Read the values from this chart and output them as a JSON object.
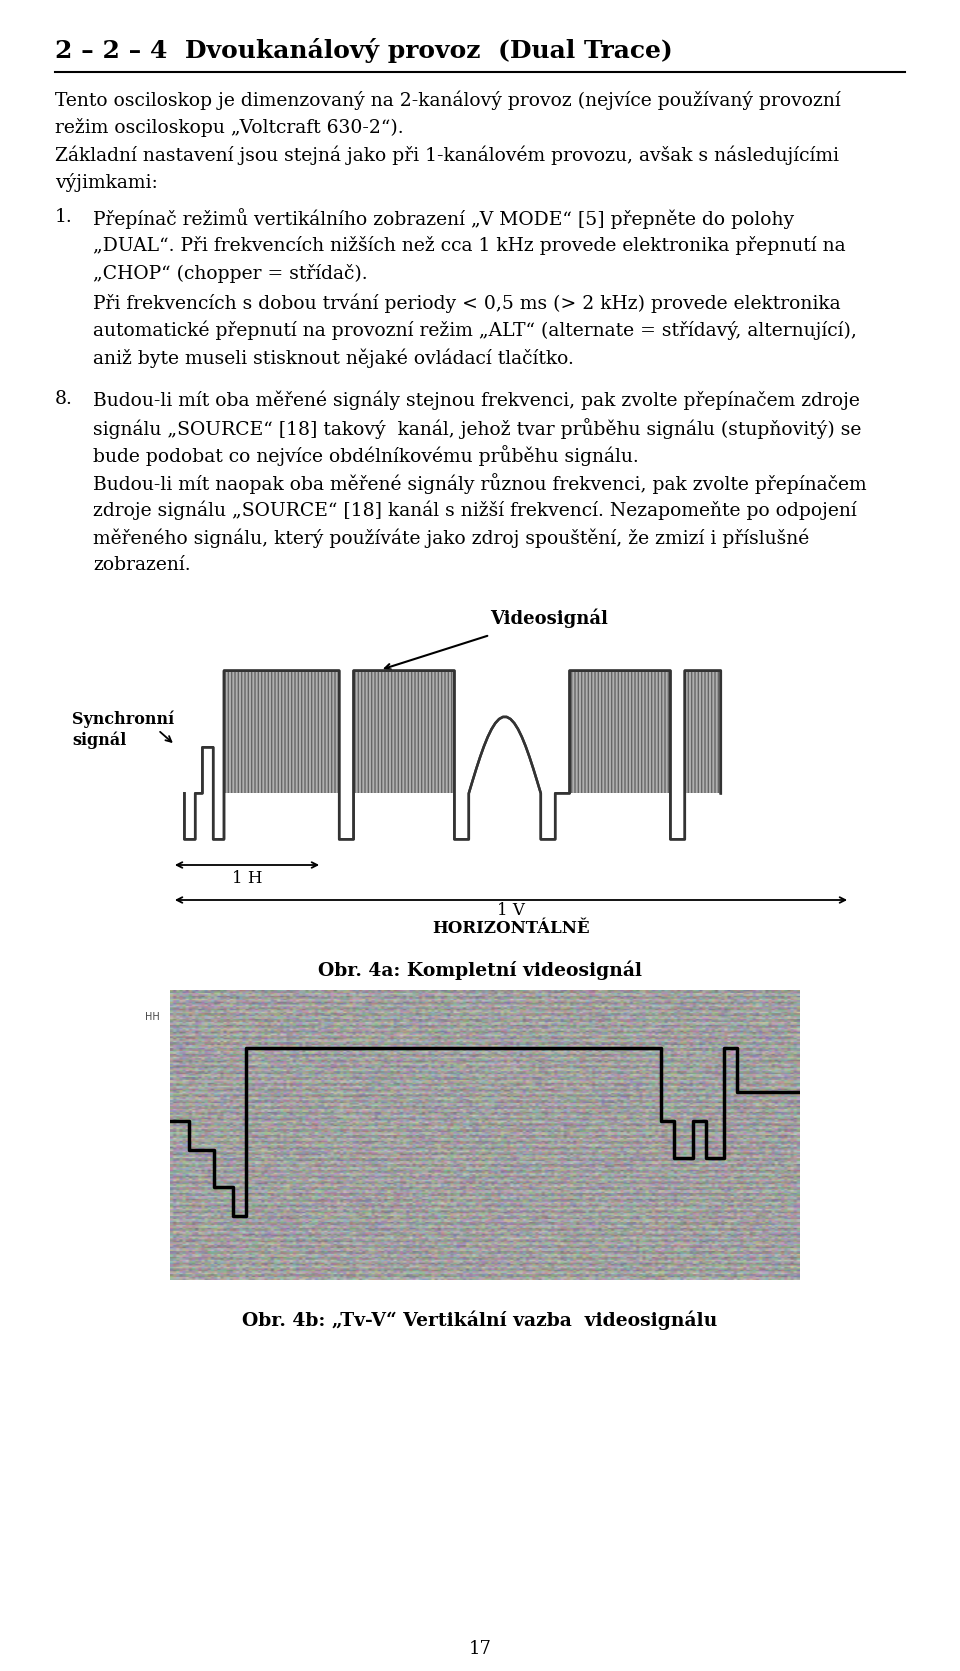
{
  "title": "2 – 2 – 4  Dvoukanálový provoz  (Dual Trace)",
  "bg_color": "#ffffff",
  "text_color": "#000000",
  "page_number": "17",
  "para1_lines": [
    "Tento osciloskop je dimenzovaný na 2-kanálový provoz (nejvíce používaný provozní",
    "režim osciloskopu „Voltcraft 630-2“).",
    "Základní nastavení jsou stejná jako při 1-kanálovém provozu, avšak s následujícími",
    "výjimkami:"
  ],
  "item1_lines": [
    "Přepínač režimů vertikálního zobrazení „V MODE“ [5] přepněte do polohy",
    "„DUAL“. Při frekvencích nižších než cca 1 kHz provede elektronika přepnutí na",
    "„CHOP“ (chopper = střídač).",
    "Při frekvencích s dobou trvání periody < 0,5 ms (> 2 kHz) provede elektronika",
    "automatické přepnutí na provozní režim „ALT“ (alternate = střídavý, alternující),",
    "aniž byte museli stisknout nějaké ovládací tlačítko."
  ],
  "item8_lines": [
    "Budou-li mít oba měřené signály stejnou frekvenci, pak zvolte přepínačem zdroje",
    "signálu „SOURCE“ [18] takový  kanál, jehož tvar průběhu signálu (stupňovitý) se",
    "bude podobat co nejvíce obdélníkovému průběhu signálu.",
    "Budou-li mít naopak oba měřené signály různou frekvenci, pak zvolte přepínačem",
    "zdroje signálu „SOURCE“ [18] kanál s nižší frekvencí. Nezapomeňte po odpojení",
    "měřeného signálu, který používáte jako zdroj spouštění, že zmizí i příslušné",
    "zobrazení."
  ],
  "videosignal_label": "Videosignál",
  "sync_label_line1": "Synchronní",
  "sync_label_line2": "signál",
  "dim_1h": "1 H",
  "dim_1v": "1 V",
  "horiz_label": "HORIZONTÁLNĚ",
  "fig4a_caption": "Obr. 4a: Kompletní videosignál",
  "fig4b_caption": "Obr. 4b: „Tv-V“ Vertikální vazba  videosignálu"
}
